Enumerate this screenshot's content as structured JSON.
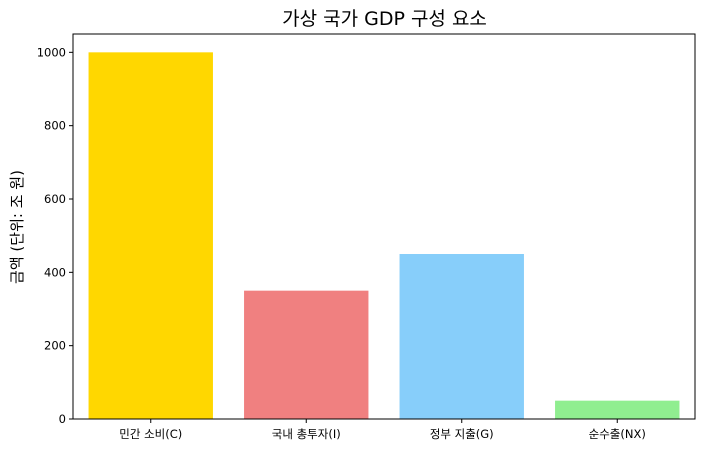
{
  "chart_data": {
    "type": "bar",
    "title": "가상 국가 GDP 구성 요소",
    "xlabel": "",
    "ylabel": "금액 (단위: 조 원)",
    "categories": [
      "민간 소비(C)",
      "국내 총투자(I)",
      "정부 지출(G)",
      "순수출(NX)"
    ],
    "values": [
      1000,
      350,
      450,
      50
    ],
    "colors": [
      "#FFD700",
      "#F08080",
      "#87CEFA",
      "#90EE90"
    ],
    "ylim": [
      0,
      1050
    ],
    "yticks": [
      0,
      200,
      400,
      600,
      800,
      1000
    ],
    "grid": false,
    "legend": false
  }
}
